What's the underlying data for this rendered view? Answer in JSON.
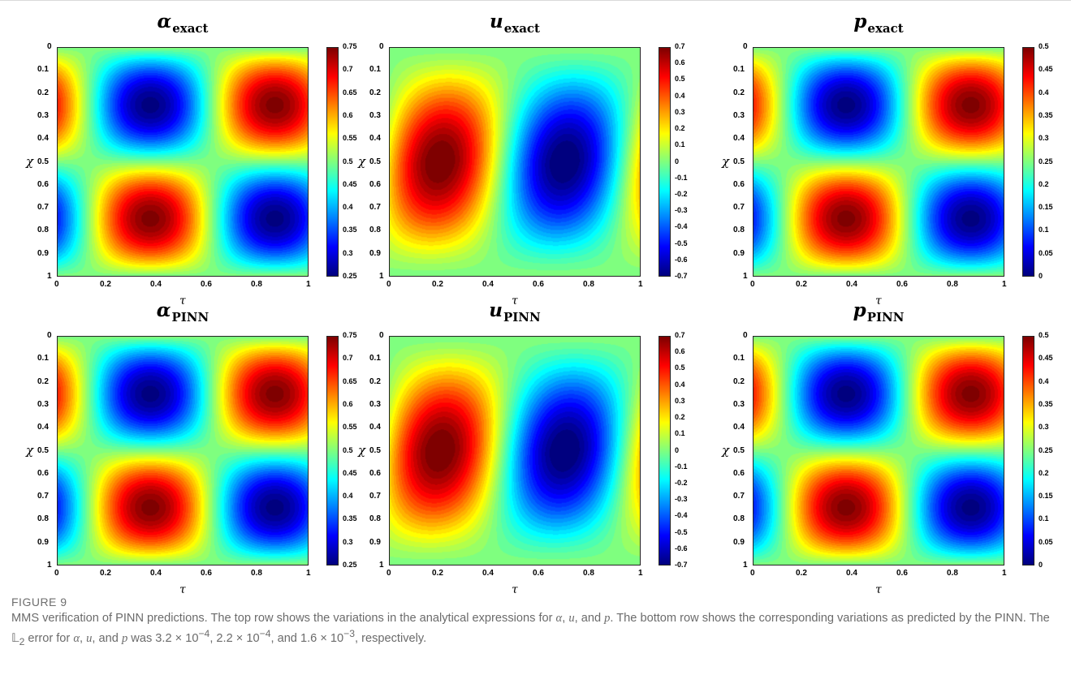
{
  "figure": {
    "label": "FIGURE 9",
    "caption_html": "MMS verification of PINN predictions. The top row shows the variations in the analytical expressions for <i>α</i>, <i>u</i>, and <i>p</i>. The bottom row shows the corresponding variations as predicted by the PINN. The 𝕃<sub>2</sub> error for <i>α</i>, <i>u</i>, and <i>p</i> was 3.2 × 10<sup>−4</sup>, 2.2 × 10<sup>−4</sup>, and 1.6 × 10<sup>−3</sup>, respectively."
  },
  "axes": {
    "x_label": "τ",
    "y_label": "χ",
    "x_ticks": [
      "0",
      "0.2",
      "0.4",
      "0.6",
      "0.8",
      "1"
    ],
    "y_ticks": [
      "0",
      "0.1",
      "0.2",
      "0.3",
      "0.4",
      "0.5",
      "0.6",
      "0.7",
      "0.8",
      "0.9",
      "1"
    ]
  },
  "chart_data": [
    {
      "type": "heatmap",
      "title": "α",
      "subscript": "exact",
      "field": "alpha",
      "xlabel": "τ",
      "ylabel": "χ",
      "xlim": [
        0,
        1
      ],
      "ylim": [
        0,
        1
      ],
      "clim": [
        0.25,
        0.75
      ],
      "colorbar_ticks": [
        "0.75",
        "0.7",
        "0.65",
        "0.6",
        "0.55",
        "0.5",
        "0.45",
        "0.4",
        "0.35",
        "0.3",
        "0.25"
      ]
    },
    {
      "type": "heatmap",
      "title": "u",
      "subscript": "exact",
      "field": "u",
      "xlabel": "τ",
      "ylabel": "χ",
      "xlim": [
        0,
        1
      ],
      "ylim": [
        0,
        1
      ],
      "clim": [
        -0.7,
        0.7
      ],
      "colorbar_ticks": [
        "0.7",
        "0.6",
        "0.5",
        "0.4",
        "0.3",
        "0.2",
        "0.1",
        "0",
        "-0.1",
        "-0.2",
        "-0.3",
        "-0.4",
        "-0.5",
        "-0.6",
        "-0.7"
      ]
    },
    {
      "type": "heatmap",
      "title": "p",
      "subscript": "exact",
      "field": "p",
      "xlabel": "τ",
      "ylabel": "χ",
      "xlim": [
        0,
        1
      ],
      "ylim": [
        0,
        1
      ],
      "clim": [
        0,
        0.5
      ],
      "colorbar_ticks": [
        "0.5",
        "0.45",
        "0.4",
        "0.35",
        "0.3",
        "0.25",
        "0.2",
        "0.15",
        "0.1",
        "0.05",
        "0"
      ]
    },
    {
      "type": "heatmap",
      "title": "α",
      "subscript": "PINN",
      "field": "alpha",
      "xlabel": "τ",
      "ylabel": "χ",
      "xlim": [
        0,
        1
      ],
      "ylim": [
        0,
        1
      ],
      "clim": [
        0.25,
        0.75
      ],
      "colorbar_ticks": [
        "0.75",
        "0.7",
        "0.65",
        "0.6",
        "0.55",
        "0.5",
        "0.45",
        "0.4",
        "0.35",
        "0.3",
        "0.25"
      ]
    },
    {
      "type": "heatmap",
      "title": "u",
      "subscript": "PINN",
      "field": "u",
      "xlabel": "τ",
      "ylabel": "χ",
      "xlim": [
        0,
        1
      ],
      "ylim": [
        0,
        1
      ],
      "clim": [
        -0.7,
        0.7
      ],
      "colorbar_ticks": [
        "0.7",
        "0.6",
        "0.5",
        "0.4",
        "0.3",
        "0.2",
        "0.1",
        "0",
        "-0.1",
        "-0.2",
        "-0.3",
        "-0.4",
        "-0.5",
        "-0.6",
        "-0.7"
      ]
    },
    {
      "type": "heatmap",
      "title": "p",
      "subscript": "PINN",
      "field": "p",
      "xlabel": "τ",
      "ylabel": "χ",
      "xlim": [
        0,
        1
      ],
      "ylim": [
        0,
        1
      ],
      "clim": [
        0,
        0.5
      ],
      "colorbar_ticks": [
        "0.5",
        "0.45",
        "0.4",
        "0.35",
        "0.3",
        "0.25",
        "0.2",
        "0.15",
        "0.1",
        "0.05",
        "0"
      ]
    }
  ]
}
